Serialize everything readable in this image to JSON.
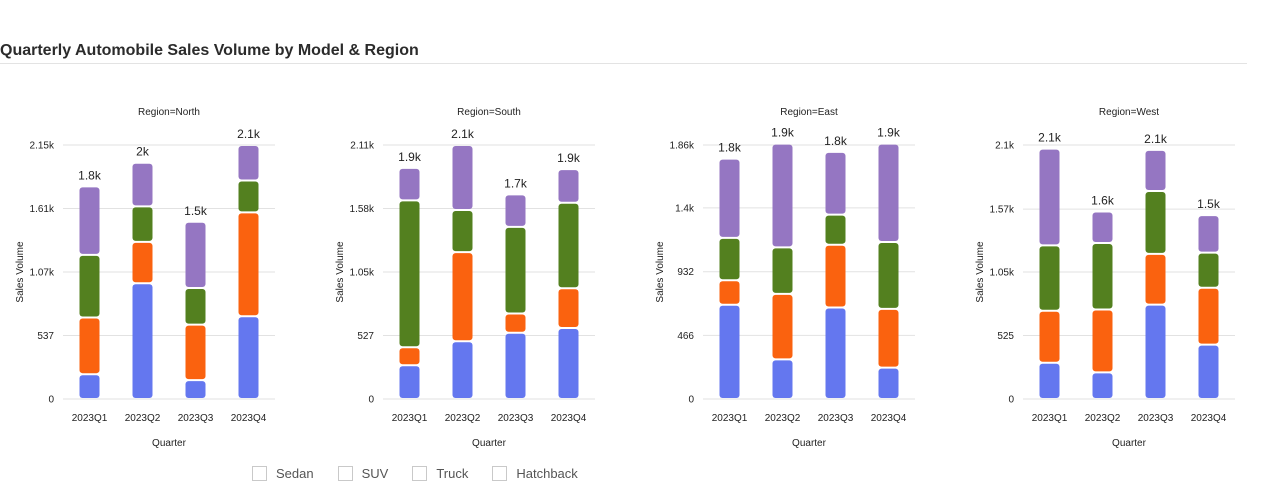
{
  "title": "Quarterly Automobile Sales Volume by Model & Region",
  "legend": [
    {
      "label": "Sedan"
    },
    {
      "label": "SUV"
    },
    {
      "label": "Truck"
    },
    {
      "label": "Hatchback"
    }
  ],
  "colors": {
    "Sedan": "#6477ef",
    "SUV": "#fa620f",
    "Truck": "#53801f",
    "Hatchback": "#9576c2",
    "grid": "#e2e2e2",
    "axis_text": "#222222"
  },
  "chart_data": [
    {
      "type": "bar",
      "stacked": true,
      "title": "Region=North",
      "xlabel": "Quarter",
      "ylabel": "Sales Volume",
      "categories": [
        "2023Q1",
        "2023Q2",
        "2023Q3",
        "2023Q4"
      ],
      "ylim": [
        0,
        2150
      ],
      "yticks": [
        0,
        537,
        1075,
        1612,
        2150
      ],
      "ytick_labels": [
        "0",
        "537",
        "1.07k",
        "1.61k",
        "2.15k"
      ],
      "totals_labels": [
        "1.8k",
        "2k",
        "1.5k",
        "2.1k"
      ],
      "series": [
        {
          "name": "Sedan",
          "values": [
            210,
            980,
            160,
            700
          ]
        },
        {
          "name": "SUV",
          "values": [
            480,
            350,
            470,
            880
          ]
        },
        {
          "name": "Truck",
          "values": [
            530,
            300,
            310,
            270
          ]
        },
        {
          "name": "Hatchback",
          "values": [
            580,
            370,
            560,
            300
          ]
        }
      ]
    },
    {
      "type": "bar",
      "stacked": true,
      "title": "Region=South",
      "xlabel": "Quarter",
      "ylabel": "Sales Volume",
      "categories": [
        "2023Q1",
        "2023Q2",
        "2023Q3",
        "2023Q4"
      ],
      "ylim": [
        0,
        2110
      ],
      "yticks": [
        0,
        527,
        1055,
        1582,
        2110
      ],
      "ytick_labels": [
        "0",
        "527",
        "1.05k",
        "1.58k",
        "2.11k"
      ],
      "totals_labels": [
        "1.9k",
        "2.1k",
        "1.7k",
        "1.9k"
      ],
      "series": [
        {
          "name": "Sedan",
          "values": [
            280,
            480,
            550,
            590
          ]
        },
        {
          "name": "SUV",
          "values": [
            150,
            740,
            160,
            330
          ]
        },
        {
          "name": "Truck",
          "values": [
            1220,
            350,
            720,
            710
          ]
        },
        {
          "name": "Hatchback",
          "values": [
            270,
            540,
            270,
            280
          ]
        }
      ]
    },
    {
      "type": "bar",
      "stacked": true,
      "title": "Region=East",
      "xlabel": "Quarter",
      "ylabel": "Sales Volume",
      "categories": [
        "2023Q1",
        "2023Q2",
        "2023Q3",
        "2023Q4"
      ],
      "ylim": [
        0,
        1860
      ],
      "yticks": [
        0,
        466,
        932,
        1400,
        1860
      ],
      "ytick_labels": [
        "0",
        "466",
        "932",
        "1.4k",
        "1.86k"
      ],
      "totals_labels": [
        "1.8k",
        "1.9k",
        "1.8k",
        "1.9k"
      ],
      "series": [
        {
          "name": "Sedan",
          "values": [
            690,
            290,
            670,
            230
          ]
        },
        {
          "name": "SUV",
          "values": [
            180,
            480,
            460,
            430
          ]
        },
        {
          "name": "Truck",
          "values": [
            310,
            340,
            220,
            490
          ]
        },
        {
          "name": "Hatchback",
          "values": [
            580,
            760,
            460,
            720
          ]
        }
      ]
    },
    {
      "type": "bar",
      "stacked": true,
      "title": "Region=West",
      "xlabel": "Quarter",
      "ylabel": "Sales Volume",
      "categories": [
        "2023Q1",
        "2023Q2",
        "2023Q3",
        "2023Q4"
      ],
      "ylim": [
        0,
        2100
      ],
      "yticks": [
        0,
        525,
        1050,
        1570,
        2100
      ],
      "ytick_labels": [
        "0",
        "525",
        "1.05k",
        "1.57k",
        "2.1k"
      ],
      "totals_labels": [
        "2.1k",
        "1.6k",
        "2.1k",
        "1.5k"
      ],
      "series": [
        {
          "name": "Sedan",
          "values": [
            300,
            220,
            780,
            450
          ]
        },
        {
          "name": "SUV",
          "values": [
            430,
            520,
            420,
            470
          ]
        },
        {
          "name": "Truck",
          "values": [
            540,
            550,
            520,
            290
          ]
        },
        {
          "name": "Hatchback",
          "values": [
            800,
            260,
            340,
            310
          ]
        }
      ]
    }
  ]
}
